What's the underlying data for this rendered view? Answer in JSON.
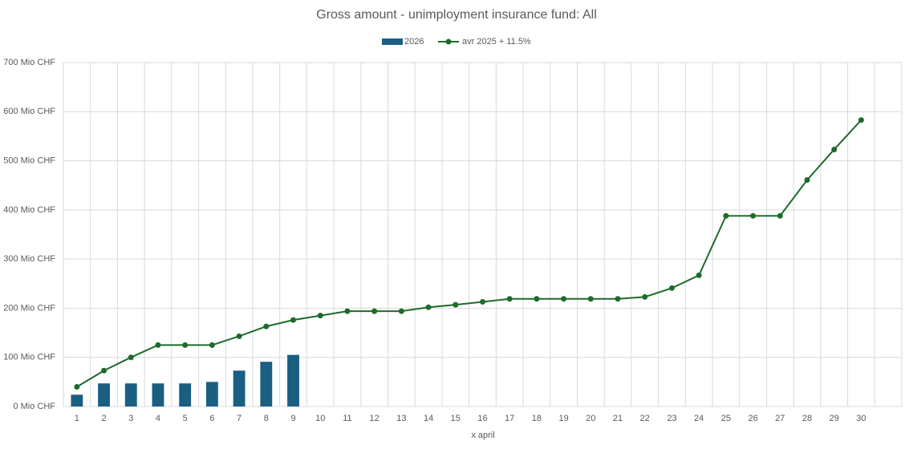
{
  "chart_data": {
    "type": "combo",
    "title": "Gross amount - unimployment insurance fund: All",
    "x_label": "x april",
    "categories": [
      "1",
      "2",
      "3",
      "4",
      "5",
      "6",
      "7",
      "8",
      "9",
      "10",
      "11",
      "12",
      "13",
      "14",
      "15",
      "16",
      "17",
      "18",
      "19",
      "20",
      "21",
      "22",
      "23",
      "24",
      "25",
      "26",
      "27",
      "28",
      "29",
      "30",
      null
    ],
    "series": [
      {
        "name": "2026",
        "type": "bar",
        "color": "#1a5e82",
        "values": [
          24,
          47,
          47,
          47,
          47,
          50,
          73,
          91,
          105,
          null,
          null,
          null,
          null,
          null,
          null,
          null,
          null,
          null,
          null,
          null,
          null,
          null,
          null,
          null,
          null,
          null,
          null,
          null,
          null,
          null,
          null
        ]
      },
      {
        "name": "avr 2025 + 11.5%",
        "type": "line",
        "color": "#1e6b2a",
        "values": [
          40,
          73,
          100,
          125,
          125,
          125,
          143,
          163,
          176,
          185,
          194,
          194,
          194,
          202,
          207,
          213,
          219,
          219,
          219,
          219,
          219,
          223,
          241,
          267,
          388,
          388,
          388,
          461,
          523,
          583,
          null
        ]
      }
    ],
    "ylim": [
      0,
      700
    ],
    "yticks": [
      {
        "value": 0,
        "label": "0  Mio CHF"
      },
      {
        "value": 100,
        "label": "100  Mio CHF"
      },
      {
        "value": 200,
        "label": "200  Mio CHF"
      },
      {
        "value": 300,
        "label": "300  Mio CHF"
      },
      {
        "value": 400,
        "label": "400  Mio CHF"
      },
      {
        "value": 500,
        "label": "500  Mio CHF"
      },
      {
        "value": 600,
        "label": "600  Mio CHF"
      },
      {
        "value": 700,
        "label": "700  Mio CHF"
      }
    ],
    "grid": true,
    "legend": "top"
  }
}
